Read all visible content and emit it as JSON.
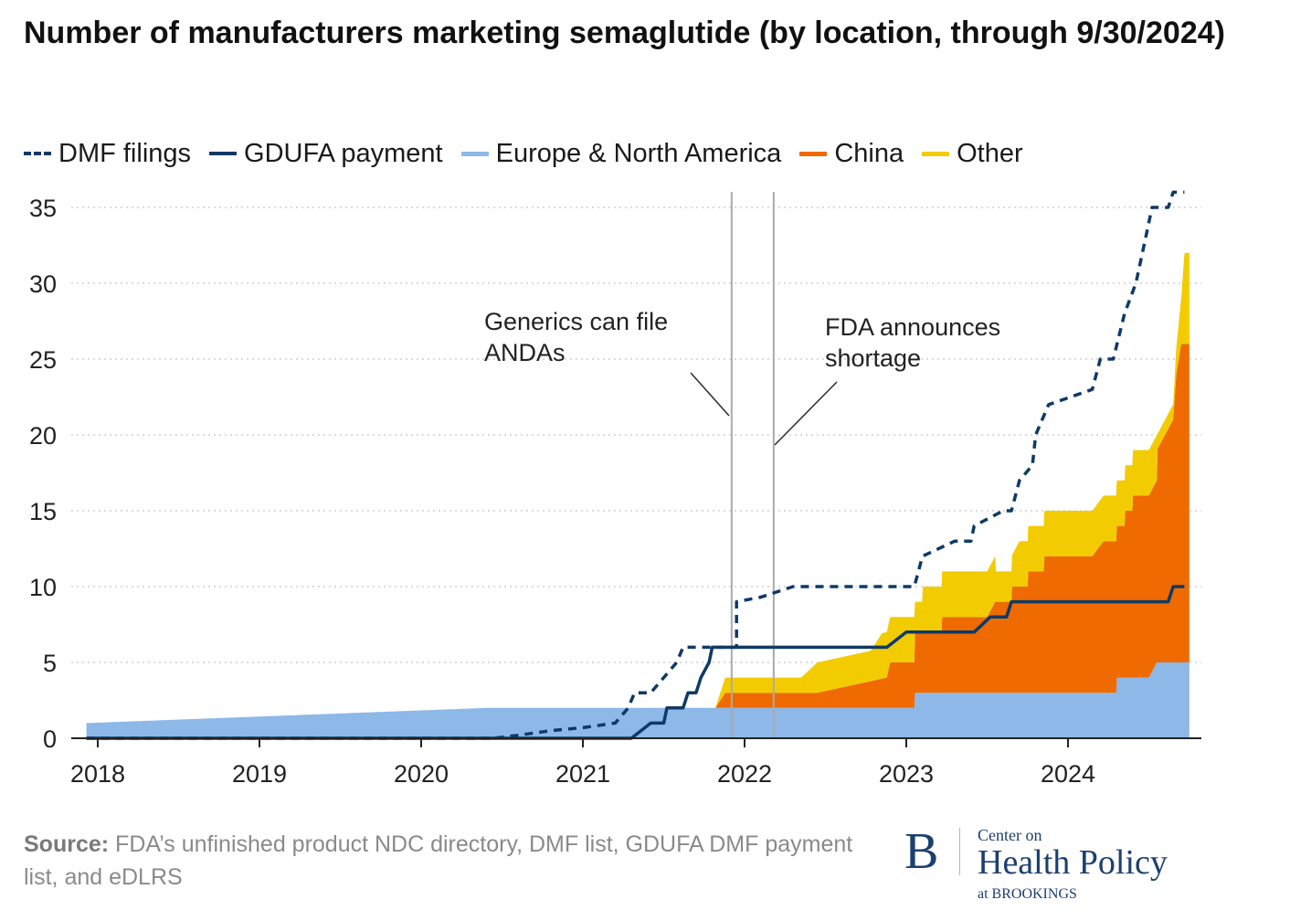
{
  "chart_data": {
    "type": "area",
    "title": "Number of manufacturers marketing semaglutide (by location, through 9/30/2024)",
    "xlabel": "",
    "ylabel": "",
    "xlim": [
      2017.93,
      2024.75
    ],
    "ylim": [
      0,
      36
    ],
    "yticks": [
      0,
      5,
      10,
      15,
      20,
      25,
      30,
      35
    ],
    "xticks": [
      2018,
      2019,
      2020,
      2021,
      2022,
      2023,
      2024
    ],
    "xtick_labels": [
      "2018",
      "2019",
      "2020",
      "2021",
      "2022",
      "2023",
      "2024"
    ],
    "grid": "horizontal dotted",
    "legend": [
      {
        "key": "dmf",
        "label": "DMF filings",
        "style": "dashed-line",
        "color": "#0e3a66"
      },
      {
        "key": "gdufa",
        "label": "GDUFA payment",
        "style": "solid-line",
        "color": "#0e3a66"
      },
      {
        "key": "europe",
        "label": "Europe & North America",
        "style": "area",
        "color": "#8db8e8"
      },
      {
        "key": "china",
        "label": "China",
        "style": "area",
        "color": "#ef6a00"
      },
      {
        "key": "other",
        "label": "Other",
        "style": "area",
        "color": "#f2cc00"
      }
    ],
    "stacked_areas": [
      {
        "name": "Europe & North America",
        "color": "#8db8e8",
        "points": [
          [
            2017.93,
            1
          ],
          [
            2020.4,
            2
          ],
          [
            2023.05,
            2
          ],
          [
            2023.05,
            3
          ],
          [
            2024.3,
            3
          ],
          [
            2024.3,
            4
          ],
          [
            2024.5,
            4
          ],
          [
            2024.55,
            5
          ],
          [
            2024.72,
            5
          ]
        ]
      },
      {
        "name": "China",
        "color": "#ef6a00",
        "points": [
          [
            2021.82,
            0
          ],
          [
            2021.88,
            1
          ],
          [
            2022.45,
            1
          ],
          [
            2022.88,
            2
          ],
          [
            2022.9,
            3
          ],
          [
            2023.05,
            3
          ],
          [
            2023.05,
            4
          ],
          [
            2023.22,
            4
          ],
          [
            2023.22,
            5
          ],
          [
            2023.5,
            5
          ],
          [
            2023.55,
            6
          ],
          [
            2023.65,
            6
          ],
          [
            2023.65,
            7
          ],
          [
            2023.75,
            7
          ],
          [
            2023.75,
            8
          ],
          [
            2023.85,
            8
          ],
          [
            2023.85,
            9
          ],
          [
            2024.15,
            9
          ],
          [
            2024.22,
            10
          ],
          [
            2024.35,
            10
          ],
          [
            2024.35,
            11
          ],
          [
            2024.4,
            11
          ],
          [
            2024.4,
            12
          ],
          [
            2024.55,
            12
          ],
          [
            2024.55,
            14
          ],
          [
            2024.6,
            15
          ],
          [
            2024.65,
            16
          ],
          [
            2024.67,
            19
          ],
          [
            2024.7,
            21
          ],
          [
            2024.72,
            21
          ]
        ]
      },
      {
        "name": "Other",
        "color": "#f2cc00",
        "points": [
          [
            2021.82,
            0
          ],
          [
            2021.88,
            1
          ],
          [
            2022.35,
            1
          ],
          [
            2022.45,
            2
          ],
          [
            2022.78,
            2
          ],
          [
            2022.85,
            3
          ],
          [
            2023.05,
            3
          ],
          [
            2023.05,
            2
          ],
          [
            2023.1,
            2
          ],
          [
            2023.1,
            3
          ],
          [
            2023.55,
            3
          ],
          [
            2023.55,
            2
          ],
          [
            2023.65,
            2
          ],
          [
            2023.7,
            3
          ],
          [
            2024.25,
            3
          ],
          [
            2024.3,
            3
          ],
          [
            2024.55,
            3
          ],
          [
            2024.55,
            1
          ],
          [
            2024.65,
            1
          ],
          [
            2024.7,
            3
          ],
          [
            2024.72,
            6
          ]
        ]
      }
    ],
    "lines": [
      {
        "name": "DMF filings",
        "color": "#0e3a66",
        "dash": true,
        "points": [
          [
            2017.93,
            0
          ],
          [
            2020.45,
            0
          ],
          [
            2020.6,
            0.2
          ],
          [
            2020.8,
            0.5
          ],
          [
            2021.0,
            0.7
          ],
          [
            2021.2,
            1
          ],
          [
            2021.28,
            2
          ],
          [
            2021.32,
            3
          ],
          [
            2021.42,
            3
          ],
          [
            2021.5,
            4
          ],
          [
            2021.58,
            5
          ],
          [
            2021.62,
            6
          ],
          [
            2021.95,
            6
          ],
          [
            2021.95,
            9
          ],
          [
            2022.1,
            9.3
          ],
          [
            2022.3,
            10
          ],
          [
            2023.05,
            10
          ],
          [
            2023.1,
            12
          ],
          [
            2023.3,
            13
          ],
          [
            2023.4,
            13
          ],
          [
            2023.42,
            14
          ],
          [
            2023.6,
            15
          ],
          [
            2023.65,
            15
          ],
          [
            2023.7,
            17
          ],
          [
            2023.78,
            18
          ],
          [
            2023.8,
            20
          ],
          [
            2023.88,
            22
          ],
          [
            2024.15,
            23
          ],
          [
            2024.2,
            25
          ],
          [
            2024.28,
            25
          ],
          [
            2024.35,
            28
          ],
          [
            2024.42,
            30
          ],
          [
            2024.48,
            33
          ],
          [
            2024.52,
            35
          ],
          [
            2024.62,
            35
          ],
          [
            2024.65,
            36
          ],
          [
            2024.72,
            36
          ]
        ]
      },
      {
        "name": "GDUFA payment",
        "color": "#0e3a66",
        "dash": false,
        "points": [
          [
            2017.93,
            0
          ],
          [
            2021.3,
            0
          ],
          [
            2021.42,
            1
          ],
          [
            2021.5,
            1
          ],
          [
            2021.52,
            2
          ],
          [
            2021.62,
            2
          ],
          [
            2021.65,
            3
          ],
          [
            2021.7,
            3
          ],
          [
            2021.73,
            4
          ],
          [
            2021.78,
            5
          ],
          [
            2021.8,
            6
          ],
          [
            2022.88,
            6
          ],
          [
            2023.0,
            7
          ],
          [
            2023.42,
            7
          ],
          [
            2023.52,
            8
          ],
          [
            2023.62,
            8
          ],
          [
            2023.65,
            9
          ],
          [
            2024.62,
            9
          ],
          [
            2024.65,
            10
          ],
          [
            2024.72,
            10
          ]
        ]
      }
    ],
    "annotations": [
      {
        "label": "Generics can file ANDAs",
        "line1": "Generics can file",
        "line2": "ANDAs",
        "x": 2021.92
      },
      {
        "label": "FDA announces shortage",
        "line1": "FDA announces",
        "line2": "shortage",
        "x": 2022.18
      }
    ]
  },
  "source": {
    "label": "Source:",
    "text": "FDA’s unfinished product NDC directory, DMF list, GDUFA DMF payment list, and eDLRS"
  },
  "logo": {
    "letter": "B",
    "line1": "Center on",
    "line2": "Health Policy",
    "line3": "at BROOKINGS"
  }
}
